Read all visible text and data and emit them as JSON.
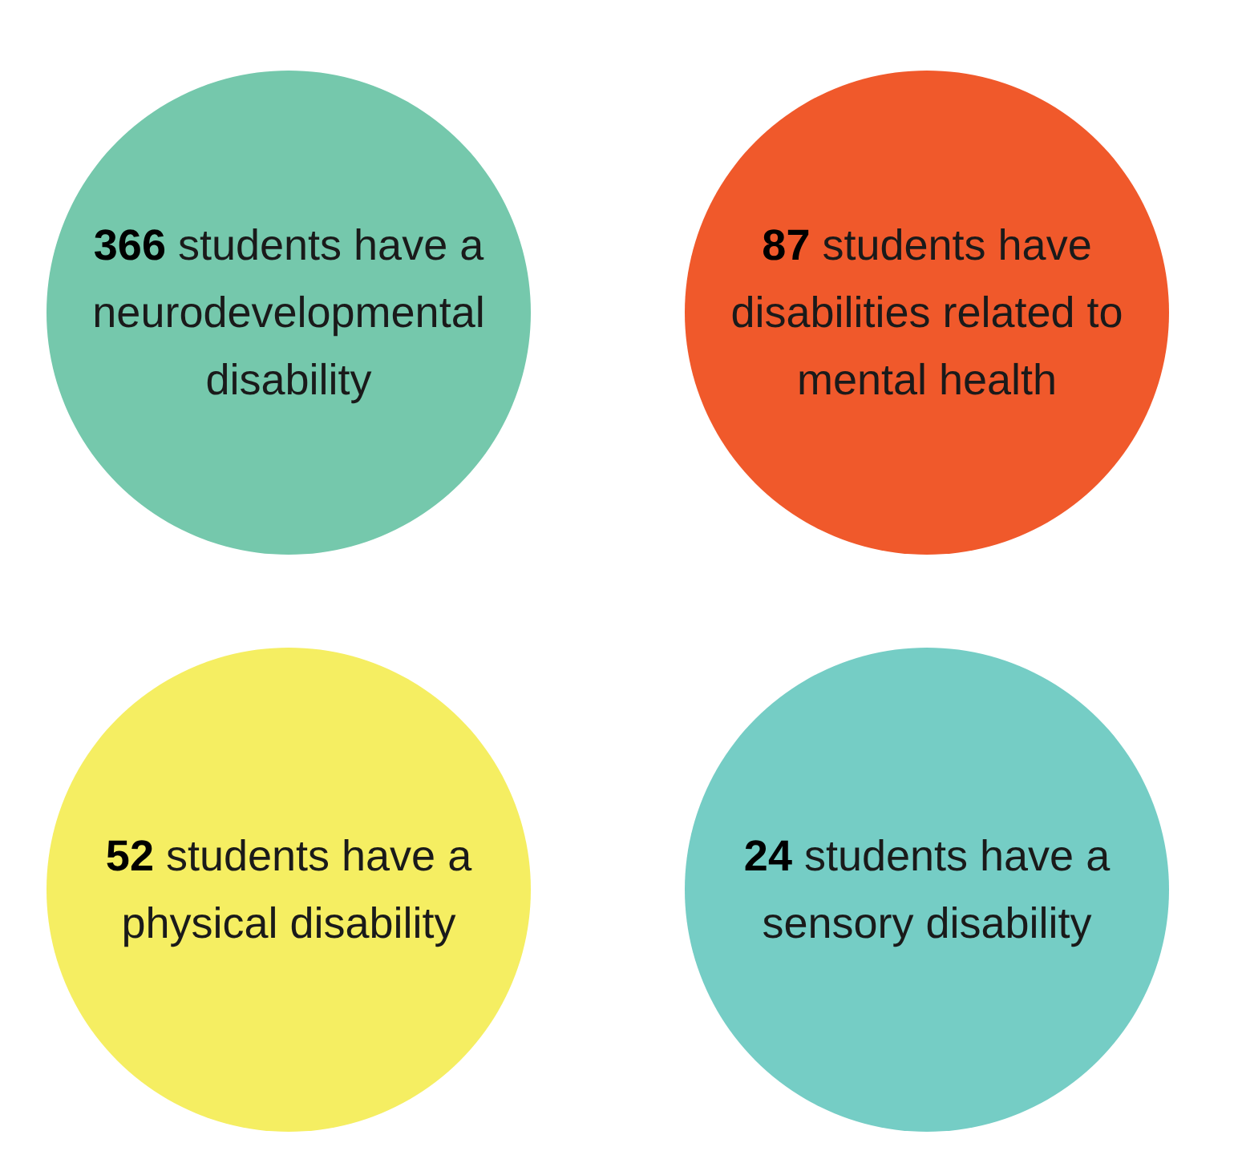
{
  "chart_data": {
    "type": "other",
    "categories": [
      "students have a neurodevelopmental disability",
      "students have disabilities related to mental health",
      "students have a physical disability",
      "students have a sensory disability"
    ],
    "values": [
      366,
      87,
      52,
      24
    ],
    "colors": [
      "#75c8ac",
      "#f0592b",
      "#f5ee62",
      "#75cdc5"
    ],
    "data_labels": true
  }
}
